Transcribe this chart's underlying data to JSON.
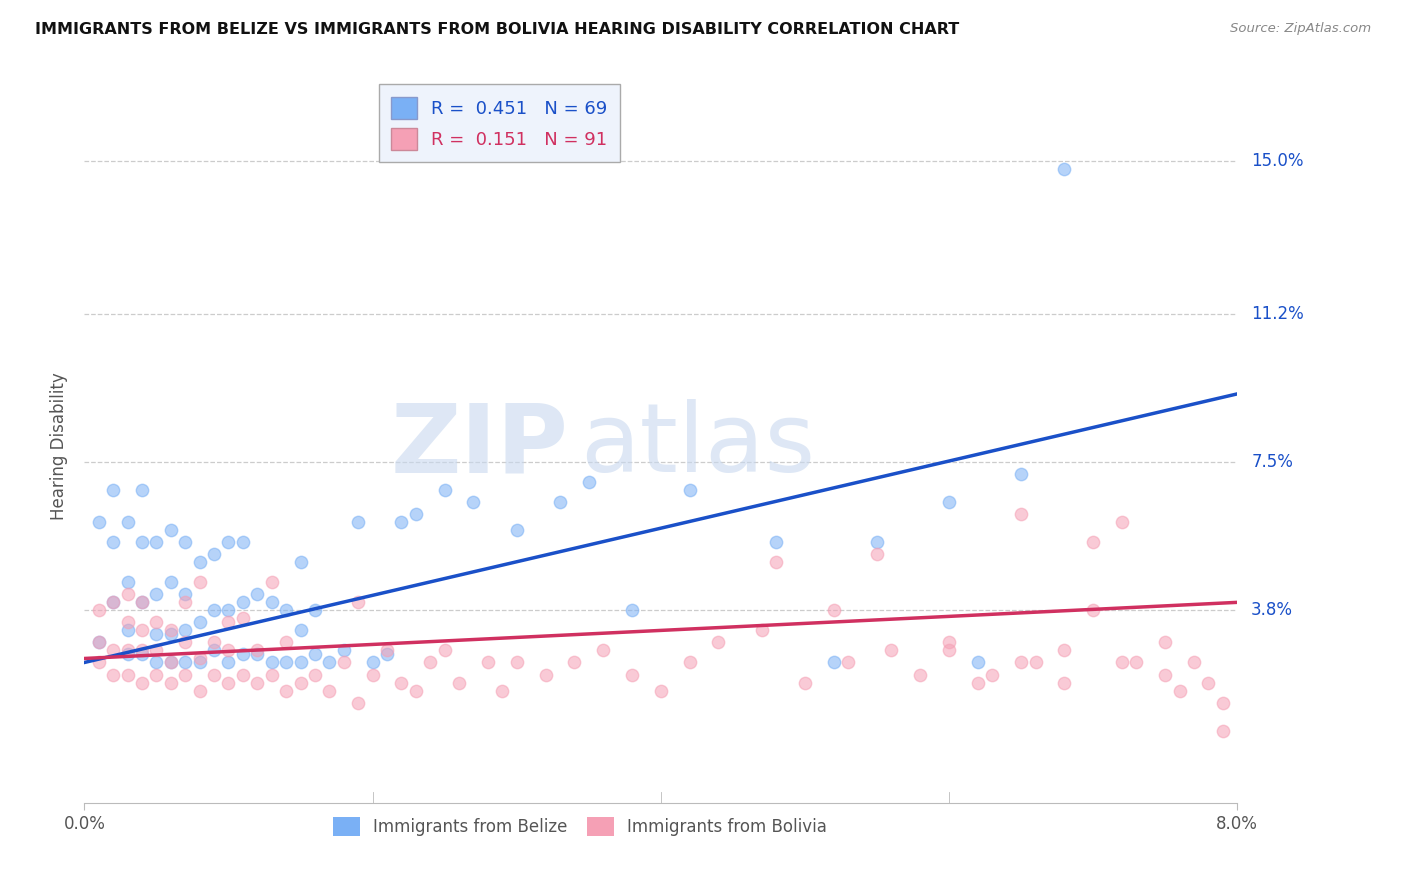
{
  "title": "IMMIGRANTS FROM BELIZE VS IMMIGRANTS FROM BOLIVIA HEARING DISABILITY CORRELATION CHART",
  "source": "Source: ZipAtlas.com",
  "ylabel": "Hearing Disability",
  "y_ticks": [
    "15.0%",
    "11.2%",
    "7.5%",
    "3.8%"
  ],
  "y_tick_vals": [
    0.15,
    0.112,
    0.075,
    0.038
  ],
  "x_lim": [
    0.0,
    0.08
  ],
  "y_lim": [
    -0.01,
    0.168
  ],
  "belize_color": "#7ab0f5",
  "bolivia_color": "#f5a0b5",
  "belize_line_color": "#1a50c8",
  "bolivia_line_color": "#d03060",
  "belize_R": 0.451,
  "belize_N": 69,
  "bolivia_R": 0.151,
  "bolivia_N": 91,
  "watermark_zip": "ZIP",
  "watermark_atlas": "atlas",
  "belize_line_x0": 0.0,
  "belize_line_y0": 0.025,
  "belize_line_x1": 0.08,
  "belize_line_y1": 0.092,
  "bolivia_line_x0": 0.0,
  "bolivia_line_y0": 0.026,
  "bolivia_line_x1": 0.08,
  "bolivia_line_y1": 0.04,
  "belize_scatter_x": [
    0.001,
    0.001,
    0.002,
    0.002,
    0.002,
    0.003,
    0.003,
    0.003,
    0.003,
    0.004,
    0.004,
    0.004,
    0.004,
    0.005,
    0.005,
    0.005,
    0.005,
    0.006,
    0.006,
    0.006,
    0.006,
    0.007,
    0.007,
    0.007,
    0.007,
    0.008,
    0.008,
    0.008,
    0.009,
    0.009,
    0.009,
    0.01,
    0.01,
    0.01,
    0.011,
    0.011,
    0.011,
    0.012,
    0.012,
    0.013,
    0.013,
    0.014,
    0.014,
    0.015,
    0.015,
    0.015,
    0.016,
    0.016,
    0.017,
    0.018,
    0.019,
    0.02,
    0.021,
    0.022,
    0.023,
    0.025,
    0.027,
    0.03,
    0.033,
    0.035,
    0.038,
    0.042,
    0.048,
    0.052,
    0.055,
    0.06,
    0.062,
    0.065,
    0.068
  ],
  "belize_scatter_y": [
    0.03,
    0.06,
    0.04,
    0.055,
    0.068,
    0.027,
    0.033,
    0.045,
    0.06,
    0.027,
    0.04,
    0.055,
    0.068,
    0.025,
    0.032,
    0.042,
    0.055,
    0.025,
    0.032,
    0.045,
    0.058,
    0.025,
    0.033,
    0.042,
    0.055,
    0.025,
    0.035,
    0.05,
    0.028,
    0.038,
    0.052,
    0.025,
    0.038,
    0.055,
    0.027,
    0.04,
    0.055,
    0.027,
    0.042,
    0.025,
    0.04,
    0.025,
    0.038,
    0.025,
    0.033,
    0.05,
    0.027,
    0.038,
    0.025,
    0.028,
    0.06,
    0.025,
    0.027,
    0.06,
    0.062,
    0.068,
    0.065,
    0.058,
    0.065,
    0.07,
    0.038,
    0.068,
    0.055,
    0.025,
    0.055,
    0.065,
    0.025,
    0.072,
    0.148
  ],
  "bolivia_scatter_x": [
    0.001,
    0.001,
    0.001,
    0.002,
    0.002,
    0.002,
    0.003,
    0.003,
    0.003,
    0.003,
    0.004,
    0.004,
    0.004,
    0.004,
    0.005,
    0.005,
    0.005,
    0.006,
    0.006,
    0.006,
    0.007,
    0.007,
    0.007,
    0.008,
    0.008,
    0.008,
    0.009,
    0.009,
    0.01,
    0.01,
    0.01,
    0.011,
    0.011,
    0.012,
    0.012,
    0.013,
    0.013,
    0.014,
    0.014,
    0.015,
    0.016,
    0.017,
    0.018,
    0.019,
    0.019,
    0.02,
    0.021,
    0.022,
    0.023,
    0.024,
    0.025,
    0.026,
    0.028,
    0.029,
    0.03,
    0.032,
    0.034,
    0.036,
    0.038,
    0.04,
    0.042,
    0.044,
    0.047,
    0.05,
    0.053,
    0.056,
    0.058,
    0.06,
    0.062,
    0.065,
    0.048,
    0.052,
    0.055,
    0.06,
    0.063,
    0.066,
    0.068,
    0.07,
    0.072,
    0.075,
    0.072,
    0.065,
    0.068,
    0.07,
    0.073,
    0.075,
    0.076,
    0.077,
    0.078,
    0.079,
    0.079
  ],
  "bolivia_scatter_y": [
    0.025,
    0.03,
    0.038,
    0.022,
    0.028,
    0.04,
    0.022,
    0.028,
    0.035,
    0.042,
    0.02,
    0.028,
    0.033,
    0.04,
    0.022,
    0.028,
    0.035,
    0.02,
    0.025,
    0.033,
    0.022,
    0.03,
    0.04,
    0.018,
    0.026,
    0.045,
    0.022,
    0.03,
    0.02,
    0.028,
    0.035,
    0.022,
    0.036,
    0.02,
    0.028,
    0.022,
    0.045,
    0.018,
    0.03,
    0.02,
    0.022,
    0.018,
    0.025,
    0.015,
    0.04,
    0.022,
    0.028,
    0.02,
    0.018,
    0.025,
    0.028,
    0.02,
    0.025,
    0.018,
    0.025,
    0.022,
    0.025,
    0.028,
    0.022,
    0.018,
    0.025,
    0.03,
    0.033,
    0.02,
    0.025,
    0.028,
    0.022,
    0.03,
    0.02,
    0.025,
    0.05,
    0.038,
    0.052,
    0.028,
    0.022,
    0.025,
    0.028,
    0.038,
    0.06,
    0.022,
    0.025,
    0.062,
    0.02,
    0.055,
    0.025,
    0.03,
    0.018,
    0.025,
    0.02,
    0.015,
    0.008
  ]
}
